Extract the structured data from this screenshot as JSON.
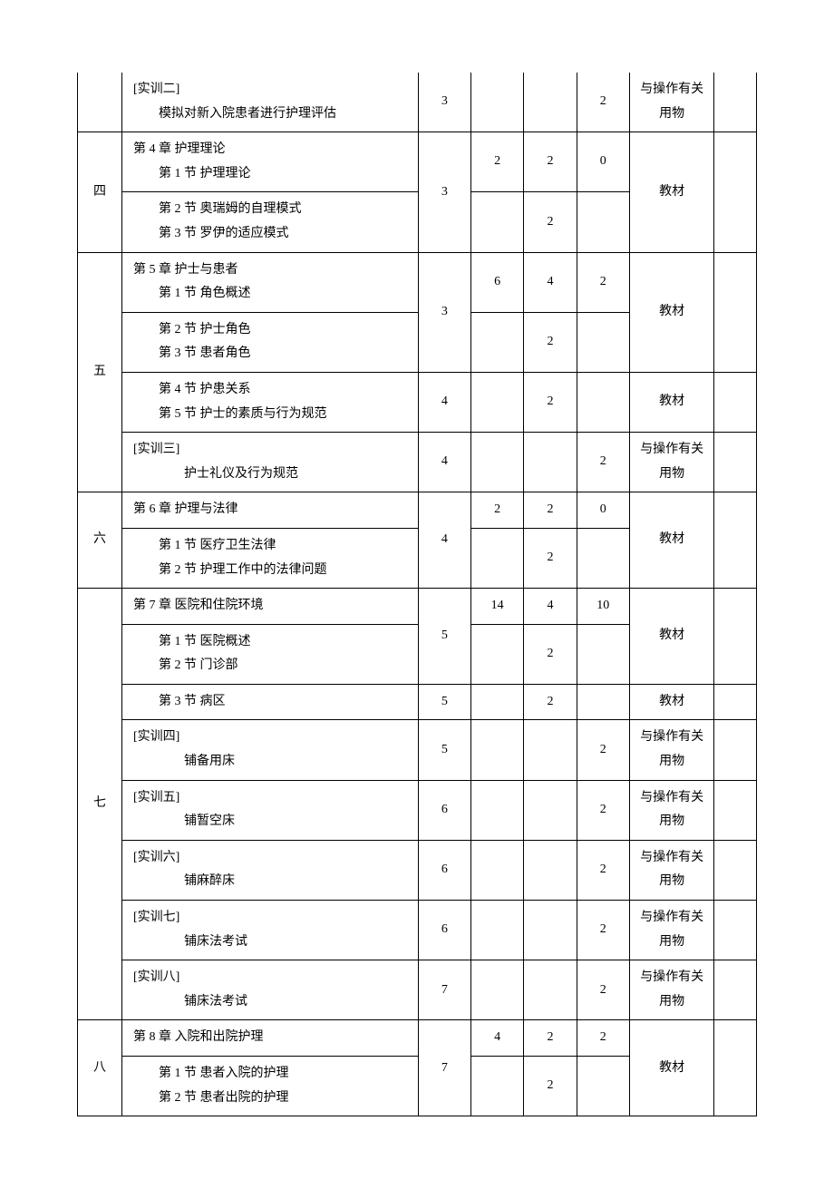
{
  "rows": [
    {
      "idx": "",
      "content_lines": [
        "[实训二]",
        "　　模拟对新入院患者进行护理评估"
      ],
      "c3": "3",
      "c4": "",
      "c5": "",
      "c6": "2",
      "mat": "与操作有关用物",
      "idx_top": false,
      "idx_bottom": true
    },
    {
      "idx": "四",
      "content_lines": [
        "第 4 章 护理理论",
        "　　第 1 节 护理理论"
      ],
      "c3": "",
      "c4": "2",
      "c5": "2",
      "c6": "0",
      "mat": "",
      "merge_c3": 2,
      "c3_val": "3",
      "merge_mat": 2,
      "mat_val": "教材",
      "merge_idx": 2
    },
    {
      "content_lines": [
        "　　第 2 节 奥瑞姆的自理模式",
        "　　第 3 节 罗伊的适应模式"
      ],
      "c4": "",
      "c5": "2",
      "c6": ""
    },
    {
      "idx": "",
      "content_lines": [
        "第 5 章 护士与患者",
        "　　第 1 节 角色概述"
      ],
      "c3": "",
      "c4": "6",
      "c5": "4",
      "c6": "2",
      "mat": "",
      "merge_c3": 2,
      "c3_val": "3",
      "merge_mat": 2,
      "mat_val": "教材",
      "idx_bottom": false,
      "merge_idx": 4,
      "idx_val": "五",
      "idx_pos": 2
    },
    {
      "content_lines": [
        "　　第 2 节 护士角色",
        "　　第 3 节 患者角色"
      ],
      "c4": "",
      "c5": "2",
      "c6": ""
    },
    {
      "content_lines": [
        "　　第 4 节 护患关系",
        "　　第 5 节 护士的素质与行为规范"
      ],
      "c3": "4",
      "c4": "",
      "c5": "2",
      "c6": "",
      "mat": "教材"
    },
    {
      "content_lines": [
        "[实训三]",
        "　　　　护士礼仪及行为规范"
      ],
      "c3": "4",
      "c4": "",
      "c5": "",
      "c6": "2",
      "mat": "与操作有关用物"
    },
    {
      "idx": "六",
      "content_lines": [
        "第 6 章 护理与法律"
      ],
      "c3": "",
      "c4": "2",
      "c5": "2",
      "c6": "0",
      "mat": "",
      "merge_c3": 2,
      "c3_val": "4",
      "merge_mat": 2,
      "mat_val": "教材",
      "merge_idx": 2
    },
    {
      "content_lines": [
        "　　第 1 节 医疗卫生法律",
        "　　第 2 节 护理工作中的法律问题"
      ],
      "c4": "",
      "c5": "2",
      "c6": ""
    },
    {
      "idx": "",
      "content_lines": [
        "第 7 章 医院和住院环境"
      ],
      "c3": "",
      "c4": "14",
      "c5": "4",
      "c6": "10",
      "mat": "",
      "merge_c3": 2,
      "c3_val": "5",
      "merge_mat": 2,
      "mat_val": "教材",
      "merge_idx": 8,
      "idx_val": "七",
      "idx_pos": 4
    },
    {
      "content_lines": [
        "　　第 1 节 医院概述",
        "　　第 2 节 门诊部"
      ],
      "c4": "",
      "c5": "2",
      "c6": ""
    },
    {
      "content_lines": [
        "　　第 3 节 病区"
      ],
      "c3": "5",
      "c4": "",
      "c5": "2",
      "c6": "",
      "mat": "教材"
    },
    {
      "content_lines": [
        "[实训四]",
        "　　　　铺备用床"
      ],
      "c3": "5",
      "c4": "",
      "c5": "",
      "c6": "2",
      "mat": "与操作有关用物"
    },
    {
      "content_lines": [
        "[实训五]",
        "　　　　铺暂空床"
      ],
      "c3": "6",
      "c4": "",
      "c5": "",
      "c6": "2",
      "mat": "与操作有关用物"
    },
    {
      "content_lines": [
        "[实训六]",
        "　　　　铺麻醉床"
      ],
      "c3": "6",
      "c4": "",
      "c5": "",
      "c6": "2",
      "mat": "与操作有关用物"
    },
    {
      "content_lines": [
        "[实训七]",
        "　　　　铺床法考试"
      ],
      "c3": "6",
      "c4": "",
      "c5": "",
      "c6": "2",
      "mat": "与操作有关用物"
    },
    {
      "content_lines": [
        "[实训八]",
        "　　　　铺床法考试"
      ],
      "c3": "7",
      "c4": "",
      "c5": "",
      "c6": "2",
      "mat": "与操作有关用物"
    },
    {
      "idx": "八",
      "content_lines": [
        "第 8 章 入院和出院护理"
      ],
      "c3": "",
      "c4": "4",
      "c5": "2",
      "c6": "2",
      "mat": "",
      "merge_c3": 2,
      "c3_val": "7",
      "merge_mat": 2,
      "mat_val": "教材",
      "merge_idx": 2,
      "idx_bottom_open": true
    },
    {
      "content_lines": [
        "　　第 1 节 患者入院的护理",
        "　　第 2 节 患者出院的护理"
      ],
      "c4": "",
      "c5": "2",
      "c6": "",
      "bottom_open": true
    }
  ]
}
